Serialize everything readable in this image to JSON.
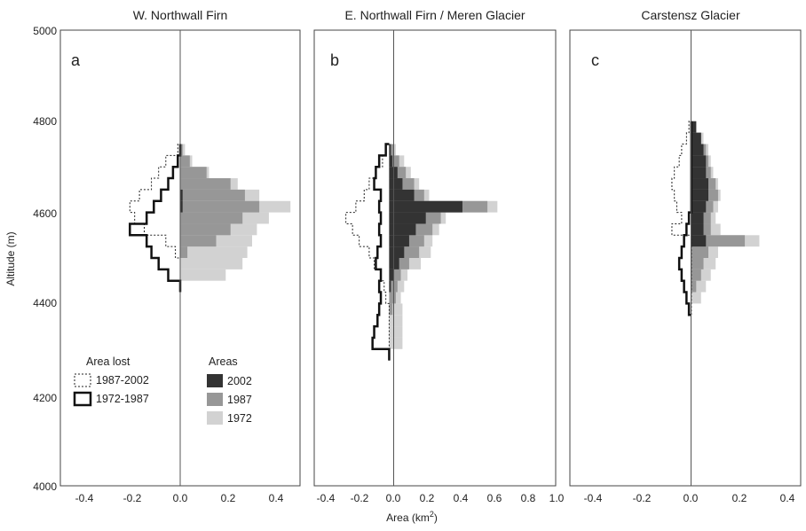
{
  "chart_data": {
    "type": "bar",
    "orientation": "horizontal",
    "ylabel": "Altitude (m)",
    "xlabel_main": "Area (km",
    "xlabel_sup": "2",
    "xlabel_close": ")",
    "ylim": [
      4000,
      5000
    ],
    "yticks": [
      "4000",
      "4200",
      "4400",
      "4600",
      "4800",
      "5000"
    ],
    "legend": {
      "lost_title": "Area lost",
      "lost_items": [
        {
          "label": "1987-2002",
          "style": "dotted"
        },
        {
          "label": "1972-1987",
          "style": "solid"
        }
      ],
      "areas_title": "Areas",
      "areas_items": [
        {
          "label": "2002",
          "color": "#333333"
        },
        {
          "label": "1987",
          "color": "#979797"
        },
        {
          "label": "1972",
          "color": "#d2d2d2"
        }
      ]
    },
    "colors": {
      "a2002": "#333333",
      "a1987": "#979797",
      "a1972": "#d2d2d2"
    },
    "panels": [
      {
        "title": "W. Northwall Firn",
        "letter": "a",
        "xlim": [
          -0.5,
          0.5
        ],
        "xticks": [
          "-0.4",
          "-0.2",
          "0.0",
          "0.2",
          "0.4"
        ],
        "bins": [
          4425,
          4450,
          4475,
          4500,
          4525,
          4550,
          4575,
          4600,
          4625,
          4650,
          4675,
          4700,
          4725
        ],
        "a1972": [
          0.0,
          0.19,
          0.26,
          0.28,
          0.3,
          0.32,
          0.37,
          0.46,
          0.33,
          0.24,
          0.12,
          0.05,
          0.02
        ],
        "a1987": [
          0.0,
          0.0,
          0.0,
          0.03,
          0.15,
          0.21,
          0.26,
          0.33,
          0.27,
          0.21,
          0.11,
          0.04,
          0.01
        ],
        "a2002": [
          0.0,
          0.0,
          0.0,
          0.0,
          0.0,
          0.0,
          0.0,
          0.01,
          0.01,
          0.0,
          0.0,
          0.0,
          0.0
        ],
        "lost7287": [
          0.0,
          0.05,
          0.09,
          0.12,
          0.14,
          0.21,
          0.14,
          0.11,
          0.08,
          0.05,
          0.03,
          0.01,
          0.0
        ],
        "lost8702": [
          0.0,
          0.0,
          0.0,
          0.02,
          0.06,
          0.15,
          0.19,
          0.21,
          0.17,
          0.12,
          0.09,
          0.06,
          0.01
        ]
      },
      {
        "title": "E. Northwall Firn / Meren Glacier",
        "letter": "b",
        "xlim": [
          -0.45,
          1.0
        ],
        "xticks": [
          "-0.4",
          "-0.2",
          "0.0",
          "0.2",
          "0.4",
          "0.6",
          "0.8",
          "1.0"
        ],
        "bins": [
          4275,
          4300,
          4325,
          4350,
          4375,
          4400,
          4425,
          4450,
          4475,
          4500,
          4525,
          4550,
          4575,
          4600,
          4625,
          4650,
          4675,
          4700,
          4725
        ],
        "a1972": [
          0.0,
          0.08,
          0.08,
          0.08,
          0.08,
          0.07,
          0.09,
          0.11,
          0.19,
          0.25,
          0.26,
          0.3,
          0.34,
          0.65,
          0.24,
          0.18,
          0.13,
          0.09,
          0.04
        ],
        "a1987": [
          0.0,
          0.0,
          0.0,
          0.0,
          0.02,
          0.04,
          0.05,
          0.07,
          0.12,
          0.18,
          0.21,
          0.26,
          0.31,
          0.59,
          0.21,
          0.15,
          0.1,
          0.06,
          0.03
        ],
        "a2002": [
          0.0,
          0.0,
          0.0,
          0.0,
          0.0,
          0.0,
          0.01,
          0.03,
          0.06,
          0.09,
          0.12,
          0.16,
          0.22,
          0.44,
          0.15,
          0.08,
          0.05,
          0.02,
          0.01
        ],
        "lost7287": [
          0.0,
          0.1,
          0.09,
          0.07,
          0.06,
          0.05,
          0.06,
          0.05,
          0.08,
          0.07,
          0.05,
          0.06,
          0.05,
          0.06,
          0.05,
          0.09,
          0.08,
          0.06,
          0.02
        ],
        "lost8702": [
          0.0,
          0.0,
          0.0,
          0.0,
          0.0,
          0.02,
          0.03,
          0.05,
          0.09,
          0.12,
          0.18,
          0.22,
          0.26,
          0.2,
          0.15,
          0.12,
          0.08,
          0.04,
          0.02
        ]
      },
      {
        "title": "Carstensz Glacier",
        "letter": "c",
        "xlim": [
          -0.5,
          0.45
        ],
        "xticks": [
          "-0.4",
          "-0.2",
          "0.0",
          "0.2",
          "0.4"
        ],
        "bins": [
          4375,
          4400,
          4425,
          4450,
          4475,
          4500,
          4525,
          4550,
          4575,
          4600,
          4625,
          4650,
          4675,
          4700,
          4725,
          4750,
          4775
        ],
        "a1972": [
          0.0,
          0.04,
          0.06,
          0.08,
          0.1,
          0.11,
          0.28,
          0.12,
          0.1,
          0.11,
          0.12,
          0.11,
          0.09,
          0.08,
          0.07,
          0.05,
          0.02
        ],
        "a1987": [
          0.0,
          0.0,
          0.02,
          0.04,
          0.05,
          0.07,
          0.22,
          0.08,
          0.08,
          0.09,
          0.11,
          0.1,
          0.08,
          0.07,
          0.06,
          0.04,
          0.02
        ],
        "a2002": [
          0.0,
          0.0,
          0.0,
          0.0,
          0.0,
          0.0,
          0.06,
          0.05,
          0.05,
          0.06,
          0.07,
          0.07,
          0.06,
          0.06,
          0.05,
          0.04,
          0.02
        ],
        "lost7287": [
          0.01,
          0.02,
          0.03,
          0.04,
          0.05,
          0.04,
          0.03,
          0.02,
          0.01,
          0.0,
          0.0,
          0.0,
          0.0,
          0.0,
          0.0,
          0.0,
          0.0
        ],
        "lost8702": [
          0.0,
          0.0,
          0.0,
          0.0,
          0.0,
          0.0,
          0.0,
          0.08,
          0.04,
          0.06,
          0.07,
          0.08,
          0.07,
          0.05,
          0.04,
          0.02,
          0.01
        ]
      }
    ]
  }
}
